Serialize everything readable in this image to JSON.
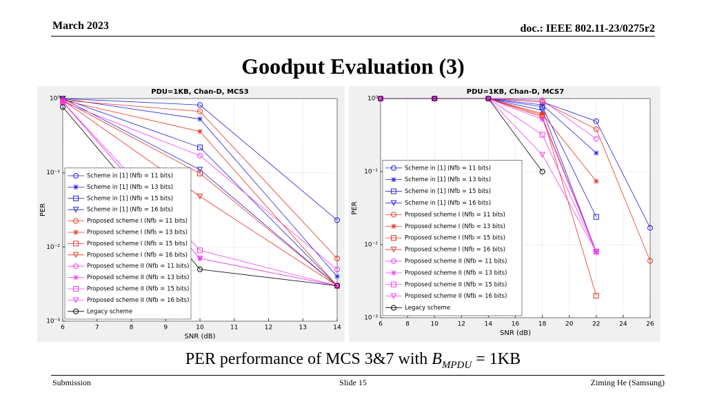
{
  "header": {
    "left": "March 2023",
    "right": "doc.: IEEE 802.11-23/0275r2",
    "title": "Goodput Evaluation (3)"
  },
  "caption": {
    "text": "PER performance of MCS 3&7 with ",
    "var": "B",
    "sub": "MPDU",
    "rest": " = 1KB"
  },
  "footer": {
    "left": "Submission",
    "center": "Slide 15",
    "right": "Ziming He (Samsung)"
  },
  "chart_data": [
    {
      "type": "line",
      "title": "PDU=1KB, Chan-D, MCS3",
      "xlabel": "SNR (dB)",
      "ylabel": "PER",
      "log_y": true,
      "grid": true,
      "legend": "southwest",
      "x": [
        6,
        10,
        14
      ],
      "xlim": [
        6,
        14
      ],
      "xticks": [
        6,
        7,
        8,
        9,
        10,
        11,
        12,
        13,
        14
      ],
      "ylim": [
        0.001,
        1
      ],
      "yticks": [
        {
          "value": 0.001,
          "label": "10⁻³"
        },
        {
          "value": 0.01,
          "label": "10⁻²"
        },
        {
          "value": 0.1,
          "label": "10⁻¹"
        },
        {
          "value": 1,
          "label": "10⁰"
        }
      ],
      "series": [
        {
          "name": "Scheme in [1] (Nfb = 11 bits)",
          "color": "#1f1fe0",
          "marker": "o",
          "values": [
            1,
            0.82,
            0.023
          ]
        },
        {
          "name": "Scheme in [1] (Nfb = 13 bits)",
          "color": "#1f1fe0",
          "marker": "*",
          "values": [
            1,
            0.53,
            0.004
          ]
        },
        {
          "name": "Scheme in [1] (Nfb = 15 bits)",
          "color": "#1f1fe0",
          "marker": "s",
          "values": [
            1,
            0.22,
            0.003
          ]
        },
        {
          "name": "Scheme in [1] (Nfb = 16 bits)",
          "color": "#1f1fe0",
          "marker": "v",
          "values": [
            1,
            0.11,
            0.003
          ]
        },
        {
          "name": "Proposed scheme I (Nfb = 11 bits)",
          "color": "#e8301f",
          "marker": "o",
          "values": [
            0.95,
            0.67,
            0.007
          ]
        },
        {
          "name": "Proposed scheme I (Nfb = 13 bits)",
          "color": "#e8301f",
          "marker": "*",
          "values": [
            0.95,
            0.36,
            0.003
          ]
        },
        {
          "name": "Proposed scheme I (Nfb = 15 bits)",
          "color": "#e8301f",
          "marker": "s",
          "values": [
            0.95,
            0.098,
            0.003
          ]
        },
        {
          "name": "Proposed scheme I (Nfb = 16 bits)",
          "color": "#e8301f",
          "marker": "v",
          "values": [
            0.95,
            0.048,
            0.003
          ]
        },
        {
          "name": "Proposed scheme II (Nfb = 11 bits)",
          "color": "#f03cf0",
          "marker": "o",
          "values": [
            0.9,
            0.17,
            0.005
          ]
        },
        {
          "name": "Proposed scheme II (Nfb = 13 bits)",
          "color": "#f03cf0",
          "marker": "*",
          "values": [
            0.9,
            0.007,
            0.003
          ]
        },
        {
          "name": "Proposed scheme II (Nfb = 15 bits)",
          "color": "#f03cf0",
          "marker": "s",
          "values": [
            0.9,
            0.009,
            0.003
          ]
        },
        {
          "name": "Proposed scheme II (Nfb = 16 bits)",
          "color": "#f03cf0",
          "marker": "v",
          "values": [
            0.9,
            0.007,
            0.003
          ]
        },
        {
          "name": "Legacy scheme",
          "color": "#000000",
          "marker": "o",
          "values": [
            0.77,
            0.005,
            0.003
          ]
        }
      ]
    },
    {
      "type": "line",
      "title": "PDU=1KB, Chan-D, MCS7",
      "xlabel": "SNR (dB)",
      "ylabel": "PER",
      "log_y": true,
      "grid": true,
      "legend": "southwest",
      "x": [
        6,
        10,
        14,
        18,
        22,
        26
      ],
      "xlim": [
        6,
        26
      ],
      "xticks": [
        6,
        8,
        10,
        12,
        14,
        16,
        18,
        20,
        22,
        24,
        26
      ],
      "ylim": [
        0.001,
        1
      ],
      "yticks": [
        {
          "value": 0.001,
          "label": "10⁻³"
        },
        {
          "value": 0.01,
          "label": "10⁻²"
        },
        {
          "value": 0.1,
          "label": "10⁻¹"
        },
        {
          "value": 1,
          "label": "10⁰"
        }
      ],
      "series": [
        {
          "name": "Scheme in [1] (Nfb = 11 bits)",
          "color": "#1f1fe0",
          "marker": "o",
          "values": [
            1,
            1,
            1,
            0.9,
            0.49,
            0.017
          ]
        },
        {
          "name": "Scheme in [1] (Nfb = 13 bits)",
          "color": "#1f1fe0",
          "marker": "*",
          "values": [
            1,
            1,
            1,
            0.82,
            0.18,
            null
          ]
        },
        {
          "name": "Scheme in [1] (Nfb = 15 bits)",
          "color": "#1f1fe0",
          "marker": "s",
          "values": [
            1,
            1,
            1,
            0.77,
            0.024,
            null
          ]
        },
        {
          "name": "Scheme in [1] (Nfb = 16 bits)",
          "color": "#1f1fe0",
          "marker": "v",
          "values": [
            1,
            1,
            1,
            0.69,
            0.008,
            null
          ]
        },
        {
          "name": "Proposed scheme I (Nfb = 11 bits)",
          "color": "#e8301f",
          "marker": "o",
          "values": [
            1,
            1,
            1,
            0.9,
            0.38,
            0.006
          ]
        },
        {
          "name": "Proposed scheme I (Nfb = 13 bits)",
          "color": "#e8301f",
          "marker": "*",
          "values": [
            1,
            1,
            1,
            0.62,
            0.074,
            null
          ]
        },
        {
          "name": "Proposed scheme I (Nfb = 15 bits)",
          "color": "#e8301f",
          "marker": "s",
          "values": [
            1,
            1,
            1,
            0.59,
            0.002,
            null
          ]
        },
        {
          "name": "Proposed scheme I (Nfb = 16 bits)",
          "color": "#e8301f",
          "marker": "v",
          "values": [
            1,
            1,
            1,
            0.56,
            0.008,
            null
          ]
        },
        {
          "name": "Proposed scheme II (Nfb = 11 bits)",
          "color": "#f03cf0",
          "marker": "o",
          "values": [
            1,
            1,
            1,
            0.95,
            0.28,
            null
          ]
        },
        {
          "name": "Proposed scheme II (Nfb = 13 bits)",
          "color": "#f03cf0",
          "marker": "*",
          "values": [
            1,
            1,
            1,
            0.52,
            0.008,
            null
          ]
        },
        {
          "name": "Proposed scheme II (Nfb = 15 bits)",
          "color": "#f03cf0",
          "marker": "s",
          "values": [
            1,
            1,
            1,
            0.32,
            0.008,
            null
          ]
        },
        {
          "name": "Proposed scheme II (Nfb = 16 bits)",
          "color": "#f03cf0",
          "marker": "v",
          "values": [
            1,
            1,
            1,
            0.17,
            0.008,
            null
          ]
        },
        {
          "name": "Legacy scheme",
          "color": "#000000",
          "marker": "o",
          "values": [
            1,
            1,
            1,
            0.1,
            null,
            null
          ]
        }
      ]
    }
  ]
}
